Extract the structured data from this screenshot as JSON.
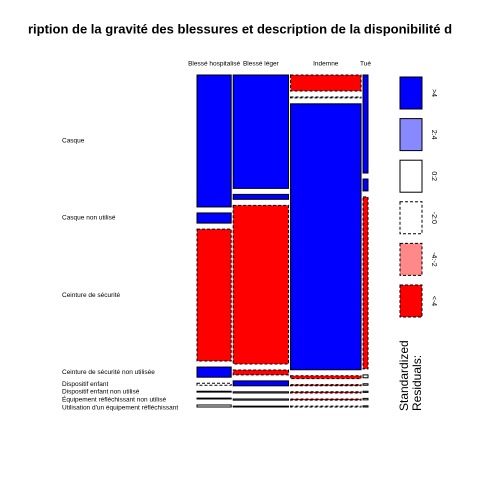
{
  "chart_data": {
    "type": "mosaic",
    "title": "ription de la gravité des blessures et description de la disponibilité d",
    "categories": [
      "Casque",
      "Casque non utilisé",
      "Ceinture de sécurité",
      "Ceinture de sécurité non utilisée",
      "Dispositif enfant",
      "Dispositif enfant non utilisé",
      "Équipement réfléchissant non utilisé",
      "Utilisation d'un équipement réfléchissant"
    ],
    "column_widths": [
      20.7,
      33.5,
      42.7,
      3.0
    ],
    "series": [
      {
        "name": "Blessé hospitalisé",
        "values": [
          45.5,
          3.5,
          45.5,
          3.5,
          0.7,
          0.3,
          0.3,
          0.7
        ],
        "shades": [
          0,
          0,
          5,
          0,
          3,
          2,
          2,
          2
        ]
      },
      {
        "name": "Blessé léger",
        "values": [
          39.1,
          1.7,
          54.7,
          1.7,
          1.7,
          0.4,
          0.4,
          0.3
        ],
        "shades": [
          0,
          0,
          5,
          5,
          0,
          2,
          2,
          2
        ]
      },
      {
        "name": "Indemne",
        "values": [
          5.5,
          0.3,
          91.7,
          1.0,
          0.4,
          0.4,
          0.4,
          0.3
        ],
        "shades": [
          5,
          3,
          0,
          5,
          5,
          5,
          5,
          3
        ]
      },
      {
        "name": "Tué",
        "values": [
          33.8,
          4.1,
          59.3,
          1.0,
          0.5,
          0.4,
          0.5,
          0.4
        ],
        "shades": [
          0,
          0,
          5,
          2,
          2,
          2,
          2,
          2
        ]
      }
    ],
    "legend_title": [
      "Standardized",
      "Residuals:"
    ],
    "legend": [
      {
        "label": ">4",
        "color": "#0000ff",
        "dashed": false
      },
      {
        "label": "2:4",
        "color": "#8888ff",
        "dashed": false
      },
      {
        "label": "0:2",
        "color": "#ffffff",
        "dashed": false
      },
      {
        "label": "-2:0",
        "color": "#ffffff",
        "dashed": true
      },
      {
        "label": "-4:-2",
        "color": "#ff8888",
        "dashed": true
      },
      {
        "label": "<-4",
        "color": "#ff0000",
        "dashed": true
      }
    ]
  }
}
